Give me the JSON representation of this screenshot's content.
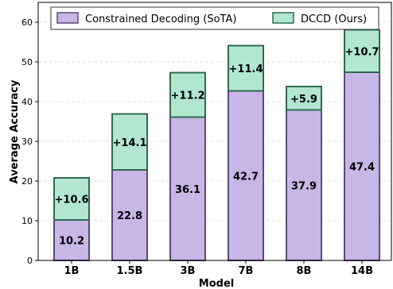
{
  "chart_data": {
    "type": "bar",
    "stacked": true,
    "categories": [
      "1B",
      "1.5B",
      "3B",
      "7B",
      "8B",
      "14B"
    ],
    "series": [
      {
        "name": "Constrained Decoding (SoTA)",
        "values": [
          10.2,
          22.8,
          36.1,
          42.7,
          37.9,
          47.4
        ],
        "color": "#c8b6e6",
        "edge": "#5a4a78"
      },
      {
        "name": "DCCD (Ours)",
        "values": [
          10.6,
          14.1,
          11.2,
          11.4,
          5.9,
          10.7
        ],
        "color": "#b2e6d0",
        "edge": "#2f6a4e"
      }
    ],
    "base_labels": [
      "10.2",
      "22.8",
      "36.1",
      "42.7",
      "37.9",
      "47.4"
    ],
    "gain_labels": [
      "+10.6",
      "+14.1",
      "+11.2",
      "+11.4",
      "+5.9",
      "+10.7"
    ],
    "xlabel": "Model",
    "ylabel": "Average Accuracy",
    "ylim": [
      0,
      65
    ],
    "yticks": [
      "0",
      "10",
      "20",
      "30",
      "40",
      "50",
      "60"
    ],
    "grid": true,
    "legend_position": "top"
  }
}
